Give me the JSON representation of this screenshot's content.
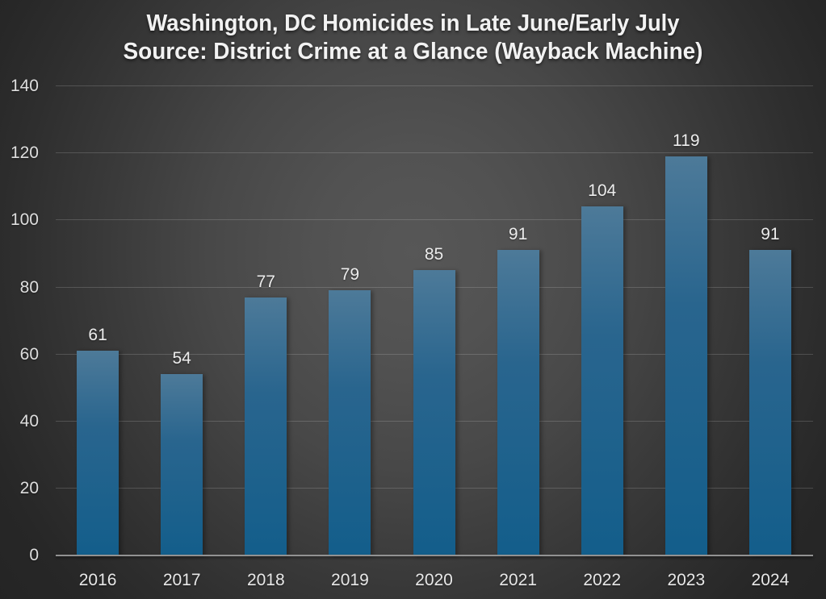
{
  "chart": {
    "title_line1": "Washington, DC Homicides in Late June/Early July",
    "title_line2": "Source: District Crime at a Glance (Wayback Machine)"
  },
  "chart_data": {
    "type": "bar",
    "title": "Washington, DC Homicides in Late June/Early July",
    "subtitle": "Source: District Crime at a Glance (Wayback Machine)",
    "categories": [
      "2016",
      "2017",
      "2018",
      "2019",
      "2020",
      "2021",
      "2022",
      "2023",
      "2024"
    ],
    "values": [
      61,
      54,
      77,
      79,
      85,
      91,
      104,
      119,
      91
    ],
    "value_labels": [
      "61",
      "54",
      "77",
      "79",
      "85",
      "91",
      "104",
      "119",
      "91"
    ],
    "xlabel": "",
    "ylabel": "",
    "ylim": [
      0,
      140
    ],
    "yticks": [
      0,
      20,
      40,
      60,
      80,
      100,
      120,
      140
    ],
    "grid": true,
    "legend": false,
    "colors": {
      "bar_gradient_top": "#4d7a99",
      "bar_gradient_mid": "#29658e",
      "bar_gradient_bottom": "#135e8b",
      "background_center": "#575757",
      "background_edge": "#242424",
      "gridline": "rgba(255,255,255,0.16)",
      "axis_line": "#929292",
      "title_text": "#f2f2f2",
      "label_text": "#e8e8e8"
    }
  }
}
